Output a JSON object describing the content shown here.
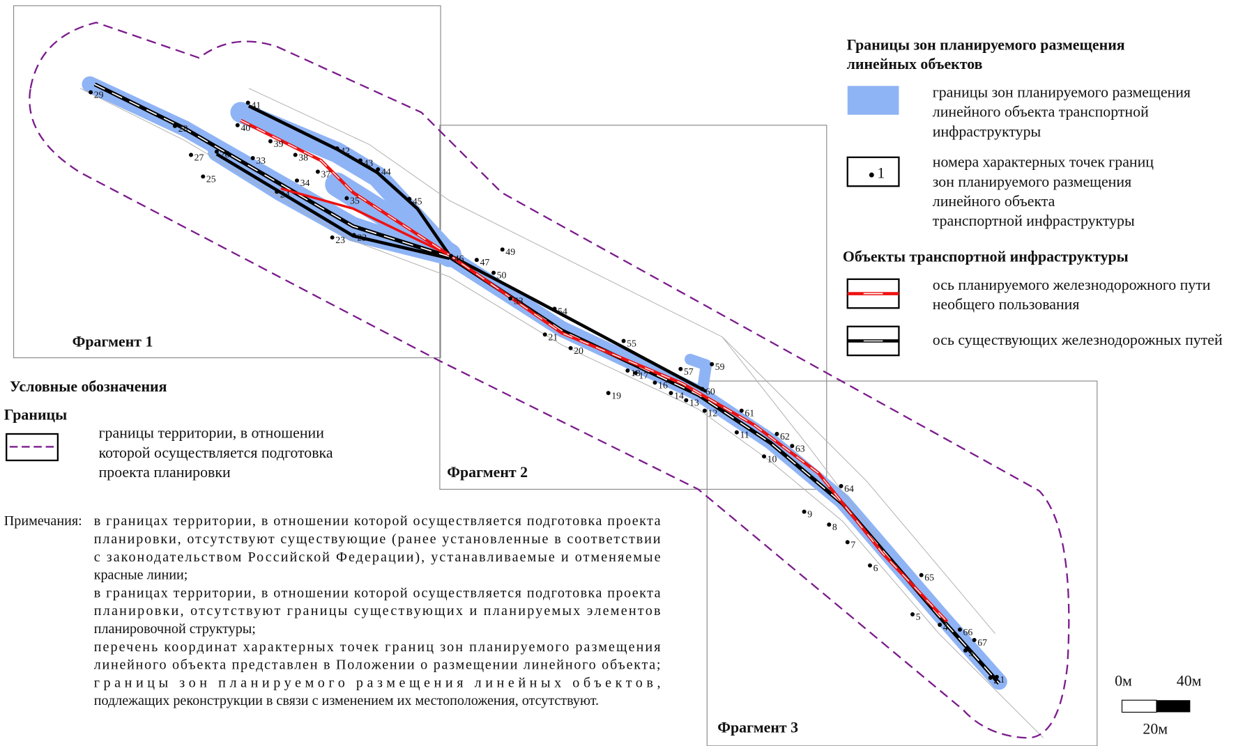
{
  "legend": {
    "zones_title": [
      "Границы зон планируемого размещения",
      "линейных объектов"
    ],
    "zone_item": [
      "границы зон планируемого размещения",
      "линейного объекта транспортной",
      "инфраструктуры"
    ],
    "point_sample": "1",
    "point_item": [
      "номера характерных точек границ",
      "зон планируемого размещения",
      "линейного объекта",
      "транспортной инфраструктуры"
    ],
    "transport_title": "Объекты транспортной инфраструктуры",
    "planned_axis": [
      "ось планируемого железнодорожного пути",
      "необщего пользования"
    ],
    "existing_axis": "ось существующих железнодорожных путей"
  },
  "conventions": {
    "title": "Условные обозначения",
    "boundaries": "Границы",
    "boundary_item": [
      "границы территории, в отношении",
      "которой осуществляется подготовка",
      "проекта планировки"
    ]
  },
  "fragments": [
    "Фрагмент 1",
    "Фрагмент 2",
    "Фрагмент 3"
  ],
  "notes": {
    "label": "Примечания:",
    "lines": [
      "в границах территории, в отношении которой осуществляется подготовка проекта",
      "планировки, отсутствуют существующие (ранее установленные в соответствии",
      "с законодательством Российской Федерации), устанавливаемые и отменяемые",
      "красные линии;",
      "в границах территории, в отношении которой осуществляется подготовка проекта",
      "планировки, отсутствуют границы существующих и планируемых элементов",
      "планировочной структуры;",
      "перечень координат характерных точек границ зон планируемого размещения",
      "линейного объекта представлен в Положении о размещении линейного объекта;",
      "границы зон планируемого размещения линейных объектов,",
      "подлежащих реконструкции в связи с изменением их местоположения, отсутствуют."
    ]
  },
  "scale": {
    "start": "0м",
    "end": "40м",
    "mid": "20м"
  },
  "points": [
    "29",
    "28",
    "27",
    "26",
    "25",
    "33",
    "41",
    "40",
    "39",
    "38",
    "37",
    "34",
    "24",
    "35",
    "42",
    "43",
    "44",
    "45",
    "23",
    "22",
    "46",
    "47",
    "49",
    "50",
    "53",
    "54",
    "21",
    "20",
    "55",
    "18",
    "17",
    "19",
    "57",
    "59",
    "16",
    "14",
    "13",
    "60",
    "12",
    "61",
    "11",
    "62",
    "63",
    "10",
    "64",
    "9",
    "8",
    "7",
    "6",
    "65",
    "5",
    "4",
    "66",
    "67",
    "3",
    "2",
    "1"
  ]
}
